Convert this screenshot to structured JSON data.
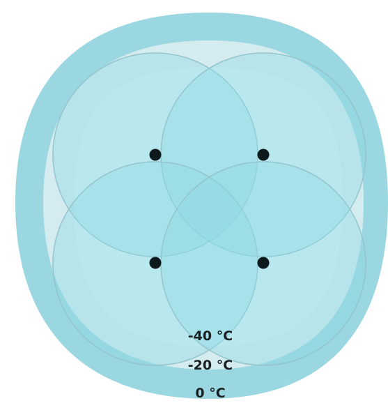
{
  "zones": [
    {
      "label": "0 °C",
      "color": "#9ad7e1"
    },
    {
      "label": "-20 °C",
      "color": "#d4ecef"
    },
    {
      "label": "-40 °C",
      "color": "#d8f2f6"
    }
  ],
  "lobes": {
    "count": 4,
    "fill_color": "#8ed8e3",
    "stroke_color": "#94c4cc"
  },
  "emitters": {
    "count": 4,
    "color": "#0c1a1e"
  }
}
